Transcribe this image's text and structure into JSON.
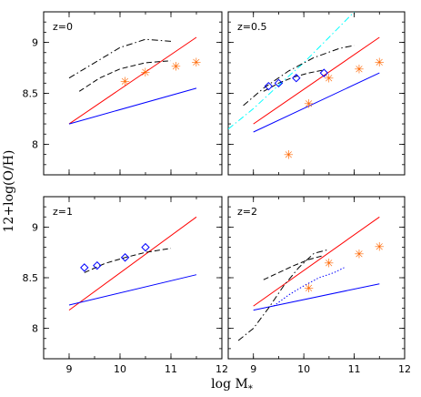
{
  "chart_data": {
    "type": "scatter",
    "layout": "2x2 panels",
    "xlabel": "log M",
    "xlabel_sub": "*",
    "ylabel": "12+log(O/H)",
    "xlim": [
      8.5,
      12
    ],
    "ylim": [
      7.7,
      9.3
    ],
    "xticks": [
      9,
      10,
      11,
      12
    ],
    "yticks": [
      8,
      8.5,
      9
    ],
    "colors": {
      "red": "#ff0000",
      "blue": "#0000ff",
      "black": "#000000",
      "orange": "#ff6600",
      "cyan": "#00ffff"
    },
    "panels": [
      {
        "title": "z=0",
        "show_x_ticklabels": false,
        "show_y_ticklabels": true,
        "lines": [
          {
            "color": "red",
            "style": "solid",
            "x": [
              9.0,
              11.5
            ],
            "y": [
              8.2,
              9.05
            ]
          },
          {
            "color": "blue",
            "style": "solid",
            "x": [
              9.0,
              11.5
            ],
            "y": [
              8.2,
              8.55
            ]
          },
          {
            "color": "black",
            "style": "dashdot",
            "x": [
              9.0,
              9.5,
              10.0,
              10.5,
              11.0
            ],
            "y": [
              8.65,
              8.8,
              8.95,
              9.03,
              9.01
            ]
          },
          {
            "color": "black",
            "style": "dashed",
            "x": [
              9.2,
              9.6,
              10.0,
              10.5,
              11.0
            ],
            "y": [
              8.52,
              8.65,
              8.74,
              8.8,
              8.82
            ]
          }
        ],
        "stars": {
          "color": "orange",
          "x": [
            10.1,
            10.5,
            11.1,
            11.5
          ],
          "y": [
            8.62,
            8.71,
            8.77,
            8.81
          ]
        },
        "diamonds": {
          "color": "blue",
          "x": [],
          "y": []
        }
      },
      {
        "title": "z=0.5",
        "show_x_ticklabels": false,
        "show_y_ticklabels": false,
        "lines": [
          {
            "color": "red",
            "style": "solid",
            "x": [
              9.0,
              11.5
            ],
            "y": [
              8.2,
              9.05
            ]
          },
          {
            "color": "blue",
            "style": "solid",
            "x": [
              9.0,
              11.5
            ],
            "y": [
              8.12,
              8.7
            ]
          },
          {
            "color": "cyan",
            "style": "dashdot",
            "x": [
              8.5,
              9.0,
              9.5,
              10.0,
              10.5,
              11.0
            ],
            "y": [
              8.15,
              8.35,
              8.58,
              8.8,
              9.05,
              9.3
            ]
          },
          {
            "color": "black",
            "style": "dashdot",
            "x": [
              8.8,
              9.2,
              9.7,
              10.2,
              10.7,
              11.0
            ],
            "y": [
              8.38,
              8.55,
              8.72,
              8.85,
              8.94,
              8.97
            ]
          },
          {
            "color": "black",
            "style": "dashed",
            "x": [
              9.2,
              9.5,
              9.8,
              10.1,
              10.4
            ],
            "y": [
              8.52,
              8.6,
              8.66,
              8.7,
              8.73
            ]
          }
        ],
        "stars": {
          "color": "orange",
          "x": [
            9.7,
            10.1,
            10.5,
            11.1,
            11.5
          ],
          "y": [
            7.9,
            8.4,
            8.65,
            8.74,
            8.81
          ]
        },
        "diamonds": {
          "color": "blue",
          "x": [
            9.3,
            9.5,
            9.85,
            10.4
          ],
          "y": [
            8.57,
            8.6,
            8.65,
            8.7
          ]
        }
      },
      {
        "title": "z=1",
        "show_x_ticklabels": true,
        "show_y_ticklabels": true,
        "lines": [
          {
            "color": "red",
            "style": "solid",
            "x": [
              9.0,
              11.5
            ],
            "y": [
              8.18,
              9.1
            ]
          },
          {
            "color": "blue",
            "style": "solid",
            "x": [
              9.0,
              11.5
            ],
            "y": [
              8.23,
              8.53
            ]
          },
          {
            "color": "black",
            "style": "dashed",
            "x": [
              9.3,
              9.7,
              10.1,
              10.5,
              11.0
            ],
            "y": [
              8.55,
              8.64,
              8.7,
              8.75,
              8.79
            ]
          }
        ],
        "stars": {
          "color": "orange",
          "x": [],
          "y": []
        },
        "diamonds": {
          "color": "blue",
          "x": [
            9.3,
            9.55,
            10.1,
            10.5
          ],
          "y": [
            8.6,
            8.62,
            8.7,
            8.8
          ]
        }
      },
      {
        "title": "z=2",
        "show_x_ticklabels": true,
        "show_y_ticklabels": false,
        "lines": [
          {
            "color": "red",
            "style": "solid",
            "x": [
              9.0,
              11.5
            ],
            "y": [
              8.22,
              9.1
            ]
          },
          {
            "color": "blue",
            "style": "solid",
            "x": [
              9.0,
              11.5
            ],
            "y": [
              8.18,
              8.44
            ]
          },
          {
            "color": "black",
            "style": "dashdot",
            "x": [
              8.7,
              9.0,
              9.3,
              9.6,
              9.9,
              10.2,
              10.5
            ],
            "y": [
              7.88,
              8.0,
              8.2,
              8.42,
              8.6,
              8.74,
              8.78
            ]
          },
          {
            "color": "black",
            "style": "dashed",
            "x": [
              9.2,
              9.5,
              9.8,
              10.1,
              10.4
            ],
            "y": [
              8.48,
              8.55,
              8.62,
              8.68,
              8.72
            ]
          },
          {
            "color": "blue",
            "style": "dotted",
            "x": [
              9.4,
              9.7,
              10.0,
              10.3,
              10.6,
              10.8
            ],
            "y": [
              8.22,
              8.33,
              8.42,
              8.5,
              8.55,
              8.6
            ]
          }
        ],
        "stars": {
          "color": "orange",
          "x": [
            10.1,
            10.5,
            11.1,
            11.5
          ],
          "y": [
            8.4,
            8.65,
            8.74,
            8.81
          ]
        },
        "diamonds": {
          "color": "blue",
          "x": [],
          "y": []
        }
      }
    ]
  }
}
